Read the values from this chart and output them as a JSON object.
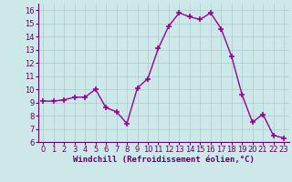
{
  "x": [
    0,
    1,
    2,
    3,
    4,
    5,
    6,
    7,
    8,
    9,
    10,
    11,
    12,
    13,
    14,
    15,
    16,
    17,
    18,
    19,
    20,
    21,
    22,
    23
  ],
  "y": [
    9.1,
    9.1,
    9.2,
    9.4,
    9.4,
    10.0,
    8.6,
    8.3,
    7.4,
    10.1,
    10.8,
    13.1,
    14.8,
    15.8,
    15.5,
    15.3,
    15.8,
    14.6,
    12.5,
    9.6,
    7.5,
    8.1,
    6.5,
    6.3
  ],
  "line_color": "#990099",
  "marker": "+",
  "marker_size": 4,
  "marker_lw": 1.2,
  "line_width": 1.0,
  "bg_color": "#cce8e8",
  "grid_color": "#aacccc",
  "xlabel": "Windchill (Refroidissement éolien,°C)",
  "xlabel_color": "#660066",
  "tick_color": "#660066",
  "spine_color": "#660066",
  "ylim": [
    6,
    16.5
  ],
  "xlim": [
    -0.5,
    23.5
  ],
  "yticks": [
    6,
    7,
    8,
    9,
    10,
    11,
    12,
    13,
    14,
    15,
    16
  ],
  "xticks": [
    0,
    1,
    2,
    3,
    4,
    5,
    6,
    7,
    8,
    9,
    10,
    11,
    12,
    13,
    14,
    15,
    16,
    17,
    18,
    19,
    20,
    21,
    22,
    23
  ],
  "tick_fontsize": 6,
  "xlabel_fontsize": 6.5
}
